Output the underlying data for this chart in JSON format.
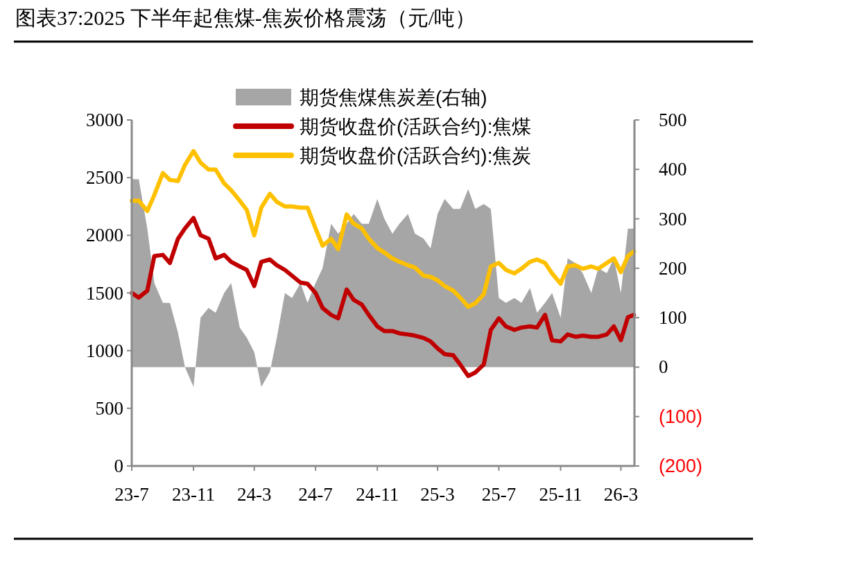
{
  "chart_data": {
    "type": "line",
    "title": "图表37:2025 下半年起焦煤-焦炭价格震荡（元/吨）",
    "x": [
      "2023-07-01",
      "2023-07-15",
      "2023-08-01",
      "2023-08-15",
      "2023-09-01",
      "2023-09-15",
      "2023-10-01",
      "2023-10-15",
      "2023-11-01",
      "2023-11-15",
      "2023-12-01",
      "2023-12-15",
      "2024-01-01",
      "2024-01-15",
      "2024-02-01",
      "2024-02-15",
      "2024-03-01",
      "2024-03-15",
      "2024-04-01",
      "2024-04-15",
      "2024-05-01",
      "2024-05-15",
      "2024-06-01",
      "2024-06-15",
      "2024-07-01",
      "2024-07-15",
      "2024-08-01",
      "2024-08-15",
      "2024-09-01",
      "2024-09-15",
      "2024-10-01",
      "2024-10-15",
      "2024-11-01",
      "2024-11-15",
      "2024-12-01",
      "2024-12-15",
      "2025-01-01",
      "2025-01-15",
      "2025-02-01",
      "2025-02-15",
      "2025-03-01",
      "2025-03-15",
      "2025-04-01",
      "2025-04-15",
      "2025-05-01",
      "2025-05-15",
      "2025-06-01",
      "2025-06-15",
      "2025-07-01",
      "2025-07-15",
      "2025-08-01",
      "2025-08-15",
      "2025-09-01",
      "2025-09-15",
      "2025-10-01",
      "2025-10-15",
      "2025-11-01",
      "2025-11-15",
      "2025-12-01",
      "2025-12-15",
      "2026-01-01",
      "2026-01-15",
      "2026-02-01",
      "2026-02-15",
      "2026-03-01",
      "2026-03-15",
      "2026-03-27"
    ],
    "series": [
      {
        "name": "期货焦煤焦炭差(右轴)",
        "type": "area",
        "axis": "y2",
        "color": "#a6a6a6",
        "values": [
          380,
          380,
          280,
          170,
          130,
          130,
          70,
          0,
          -40,
          100,
          120,
          110,
          150,
          170,
          80,
          60,
          30,
          -40,
          -10,
          60,
          150,
          140,
          170,
          130,
          170,
          200,
          290,
          270,
          290,
          310,
          290,
          290,
          340,
          300,
          270,
          290,
          310,
          270,
          260,
          240,
          310,
          340,
          320,
          320,
          360,
          320,
          330,
          320,
          140,
          130,
          140,
          130,
          160,
          110,
          130,
          150,
          100,
          220,
          210,
          190,
          150,
          200,
          190,
          220,
          150,
          280,
          280
        ]
      },
      {
        "name": "期货收盘价(活跃合约):焦煤",
        "color": "#c00000",
        "values": [
          1500,
          1460,
          1520,
          1820,
          1830,
          1760,
          1970,
          2060,
          2150,
          2000,
          1970,
          1800,
          1830,
          1770,
          1730,
          1700,
          1560,
          1770,
          1790,
          1740,
          1700,
          1650,
          1590,
          1580,
          1500,
          1370,
          1310,
          1280,
          1530,
          1440,
          1400,
          1310,
          1210,
          1170,
          1170,
          1150,
          1140,
          1130,
          1110,
          1080,
          1020,
          970,
          960,
          880,
          780,
          810,
          880,
          1180,
          1280,
          1210,
          1180,
          1200,
          1210,
          1200,
          1310,
          1090,
          1080,
          1140,
          1120,
          1130,
          1120,
          1120,
          1140,
          1210,
          1090,
          1290,
          1310
        ]
      },
      {
        "name": "期货收盘价(活跃合约):焦炭",
        "color": "#ffc000",
        "values": [
          2300,
          2300,
          2210,
          2350,
          2540,
          2480,
          2470,
          2610,
          2730,
          2630,
          2570,
          2570,
          2450,
          2390,
          2300,
          2220,
          2000,
          2240,
          2360,
          2290,
          2250,
          2250,
          2240,
          2240,
          2060,
          1910,
          1970,
          1880,
          2180,
          2100,
          2060,
          1970,
          1890,
          1850,
          1800,
          1770,
          1740,
          1720,
          1650,
          1640,
          1610,
          1560,
          1520,
          1460,
          1380,
          1410,
          1490,
          1730,
          1760,
          1700,
          1670,
          1710,
          1770,
          1790,
          1760,
          1670,
          1580,
          1730,
          1740,
          1710,
          1730,
          1710,
          1760,
          1800,
          1680,
          1820,
          1860
        ]
      }
    ],
    "xlim": [
      "2023-07-01",
      "2026-03-28"
    ],
    "xticks": [
      {
        "value": "2023-07-01",
        "label": "23-7"
      },
      {
        "value": "2023-11-01",
        "label": "23-11"
      },
      {
        "value": "2024-03-01",
        "label": "24-3"
      },
      {
        "value": "2024-07-01",
        "label": "24-7"
      },
      {
        "value": "2024-11-01",
        "label": "24-11"
      },
      {
        "value": "2025-03-01",
        "label": "25-3"
      },
      {
        "value": "2025-07-01",
        "label": "25-7"
      },
      {
        "value": "2025-11-01",
        "label": "25-11"
      },
      {
        "value": "2026-03-01",
        "label": "26-3"
      }
    ],
    "ylim": [
      0,
      3000
    ],
    "yticks": [
      0,
      500,
      1000,
      1500,
      2000,
      2500,
      3000
    ],
    "y2lim": [
      -200,
      500
    ],
    "y2ticks": [
      {
        "value": -200,
        "label": "(200)"
      },
      {
        "value": -100,
        "label": "(100)"
      },
      0,
      100,
      200,
      300,
      400,
      500
    ],
    "legend": "top",
    "grid": false
  }
}
